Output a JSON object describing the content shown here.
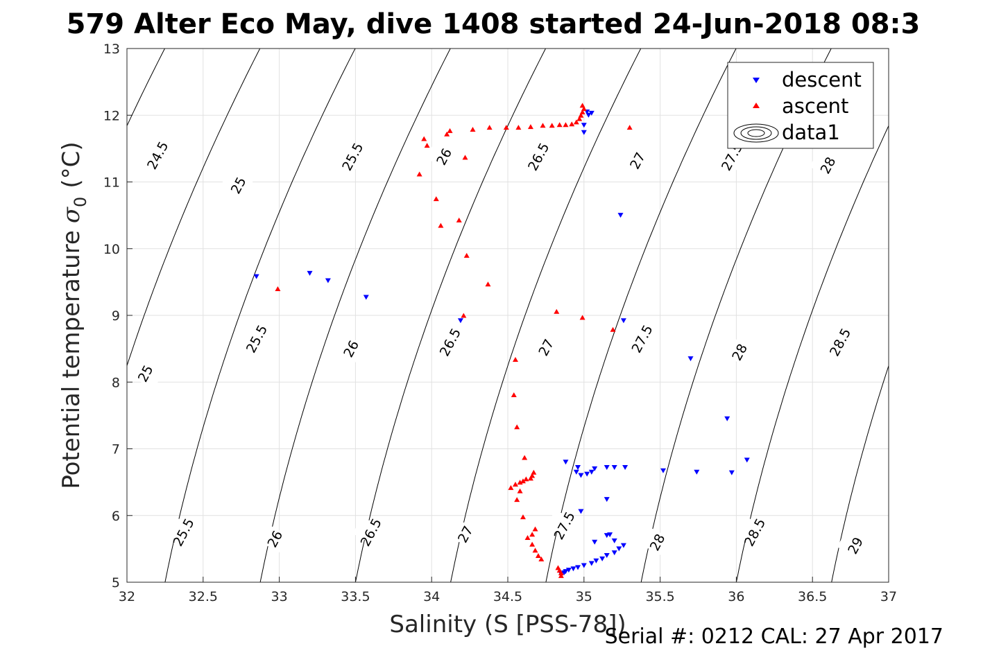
{
  "chart_data": {
    "type": "scatter",
    "title": "579 Alter Eco May, dive 1408 started 24-Jun-2018 08:3",
    "xlabel": "Salinity (S [PSS-78])",
    "ylabel": "Potential temperature",
    "ylabel_sigma": "σ",
    "ylabel_sub": "0",
    "ylabel_unit": "(°C)",
    "footer": "Serial #: 0212  CAL: 27 Apr 2017",
    "xlim": [
      32,
      37
    ],
    "ylim": [
      5,
      13
    ],
    "grid": true,
    "xticks": [
      "32",
      "32.5",
      "33",
      "33.5",
      "34",
      "34.5",
      "35",
      "35.5",
      "36",
      "36.5",
      "37"
    ],
    "yticks": [
      "5",
      "6",
      "7",
      "8",
      "9",
      "10",
      "11",
      "12",
      "13"
    ],
    "legend": {
      "placement": "top-right",
      "entries": [
        "descent",
        "ascent",
        "data1"
      ]
    },
    "colors": {
      "descent": "#0000ff",
      "ascent": "#ff0000",
      "contour": "#000000",
      "grid": "#e1e1e1"
    },
    "contour_labels": [
      {
        "label": "24.5",
        "s": 32.2,
        "t": 11.4
      },
      {
        "label": "25",
        "s": 32.73,
        "t": 10.95
      },
      {
        "label": "25.5",
        "s": 33.48,
        "t": 11.38
      },
      {
        "label": "26",
        "s": 34.08,
        "t": 11.38
      },
      {
        "label": "26.5",
        "s": 34.7,
        "t": 11.38
      },
      {
        "label": "27",
        "s": 35.35,
        "t": 11.32
      },
      {
        "label": "27.5",
        "s": 35.97,
        "t": 11.38
      },
      {
        "label": "28",
        "s": 36.6,
        "t": 11.25
      },
      {
        "label": "25",
        "s": 32.12,
        "t": 8.13
      },
      {
        "label": "25.5",
        "s": 32.85,
        "t": 8.65
      },
      {
        "label": "26",
        "s": 33.47,
        "t": 8.5
      },
      {
        "label": "26.5",
        "s": 34.12,
        "t": 8.6
      },
      {
        "label": "27",
        "s": 34.75,
        "t": 8.52
      },
      {
        "label": "27.5",
        "s": 35.38,
        "t": 8.65
      },
      {
        "label": "28",
        "s": 36.02,
        "t": 8.45
      },
      {
        "label": "28.5",
        "s": 36.68,
        "t": 8.6
      },
      {
        "label": "25.5",
        "s": 32.37,
        "t": 5.75
      },
      {
        "label": "26",
        "s": 32.97,
        "t": 5.65
      },
      {
        "label": "26.5",
        "s": 33.6,
        "t": 5.75
      },
      {
        "label": "27",
        "s": 34.22,
        "t": 5.72
      },
      {
        "label": "27.5",
        "s": 34.87,
        "t": 5.85
      },
      {
        "label": "28",
        "s": 35.48,
        "t": 5.6
      },
      {
        "label": "28.5",
        "s": 36.12,
        "t": 5.75
      },
      {
        "label": "29",
        "s": 36.78,
        "t": 5.55
      }
    ],
    "series": [
      {
        "name": "descent",
        "marker": "triangle-down",
        "points": [
          [
            32.85,
            9.58
          ],
          [
            33.2,
            9.63
          ],
          [
            33.32,
            9.52
          ],
          [
            33.57,
            9.27
          ],
          [
            34.19,
            8.92
          ],
          [
            35.24,
            10.5
          ],
          [
            35.26,
            8.92
          ],
          [
            35.7,
            8.35
          ],
          [
            35.94,
            7.45
          ],
          [
            36.07,
            6.83
          ],
          [
            35.97,
            6.64
          ],
          [
            35.74,
            6.65
          ],
          [
            35.52,
            6.67
          ],
          [
            35.27,
            6.72
          ],
          [
            35.2,
            6.72
          ],
          [
            35.15,
            6.72
          ],
          [
            35.07,
            6.7
          ],
          [
            35.05,
            6.65
          ],
          [
            35.02,
            6.62
          ],
          [
            34.98,
            6.6
          ],
          [
            34.95,
            6.65
          ],
          [
            34.96,
            6.72
          ],
          [
            34.88,
            6.8
          ],
          [
            35.15,
            6.24
          ],
          [
            34.98,
            6.06
          ],
          [
            35.17,
            5.71
          ],
          [
            35.15,
            5.7
          ],
          [
            35.2,
            5.62
          ],
          [
            35.26,
            5.55
          ],
          [
            35.23,
            5.5
          ],
          [
            35.2,
            5.44
          ],
          [
            35.15,
            5.4
          ],
          [
            35.12,
            5.35
          ],
          [
            35.08,
            5.32
          ],
          [
            35.05,
            5.28
          ],
          [
            35.0,
            5.25
          ],
          [
            34.96,
            5.22
          ],
          [
            34.93,
            5.2
          ],
          [
            34.9,
            5.18
          ],
          [
            34.88,
            5.16
          ],
          [
            34.87,
            5.14
          ],
          [
            34.85,
            5.12
          ],
          [
            35.07,
            5.6
          ],
          [
            35.0,
            11.74
          ],
          [
            35.0,
            11.85
          ],
          [
            35.03,
            12.0
          ],
          [
            35.05,
            12.03
          ],
          [
            35.02,
            12.05
          ]
        ]
      },
      {
        "name": "ascent",
        "marker": "triangle-up",
        "points": [
          [
            32.99,
            9.4
          ],
          [
            34.21,
            9.0
          ],
          [
            34.37,
            9.47
          ],
          [
            34.82,
            9.06
          ],
          [
            34.99,
            8.97
          ],
          [
            35.19,
            8.79
          ],
          [
            34.55,
            8.34
          ],
          [
            34.54,
            7.81
          ],
          [
            34.56,
            7.33
          ],
          [
            34.61,
            6.87
          ],
          [
            34.67,
            6.65
          ],
          [
            34.66,
            6.6
          ],
          [
            34.65,
            6.56
          ],
          [
            34.62,
            6.55
          ],
          [
            34.6,
            6.52
          ],
          [
            34.58,
            6.5
          ],
          [
            34.55,
            6.47
          ],
          [
            34.52,
            6.42
          ],
          [
            34.58,
            6.37
          ],
          [
            34.56,
            6.24
          ],
          [
            34.6,
            5.98
          ],
          [
            34.63,
            5.67
          ],
          [
            34.66,
            5.57
          ],
          [
            34.68,
            5.48
          ],
          [
            34.7,
            5.4
          ],
          [
            34.72,
            5.35
          ],
          [
            34.83,
            5.22
          ],
          [
            34.84,
            5.18
          ],
          [
            34.85,
            5.14
          ],
          [
            34.85,
            5.1
          ],
          [
            34.66,
            5.72
          ],
          [
            34.68,
            5.8
          ],
          [
            33.92,
            11.12
          ],
          [
            33.95,
            11.65
          ],
          [
            33.97,
            11.55
          ],
          [
            34.1,
            11.72
          ],
          [
            34.12,
            11.77
          ],
          [
            34.27,
            11.79
          ],
          [
            34.38,
            11.82
          ],
          [
            34.49,
            11.82
          ],
          [
            34.57,
            11.82
          ],
          [
            34.65,
            11.83
          ],
          [
            34.73,
            11.85
          ],
          [
            34.79,
            11.85
          ],
          [
            34.84,
            11.86
          ],
          [
            34.88,
            11.86
          ],
          [
            34.92,
            11.87
          ],
          [
            34.95,
            11.9
          ],
          [
            34.97,
            11.95
          ],
          [
            34.98,
            12.0
          ],
          [
            34.99,
            12.05
          ],
          [
            35.0,
            12.1
          ],
          [
            34.99,
            12.15
          ],
          [
            35.3,
            11.82
          ],
          [
            34.03,
            10.75
          ],
          [
            34.06,
            10.35
          ],
          [
            34.18,
            10.43
          ],
          [
            34.22,
            11.37
          ],
          [
            34.23,
            9.9
          ]
        ]
      }
    ]
  }
}
